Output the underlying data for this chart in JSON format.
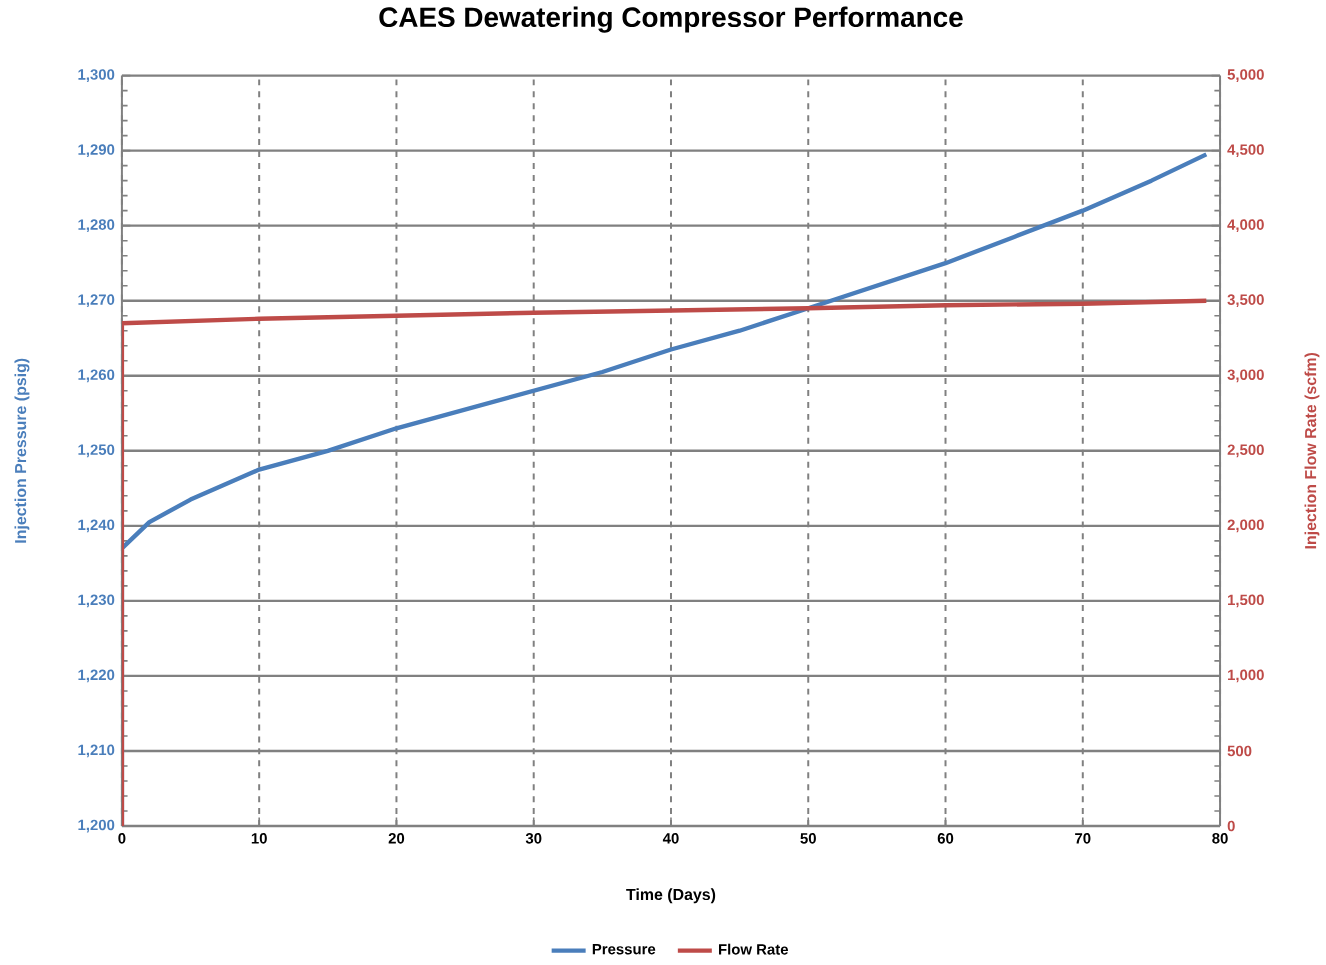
{
  "chart_data": {
    "type": "line",
    "title": "CAES Dewatering Compressor Performance",
    "xlabel": "Time (Days)",
    "ylabel": "Injection Pressure (psig)",
    "y2label": "Injection Flow Rate (scfm)",
    "xlim": [
      0,
      80
    ],
    "xticks": [
      0,
      10,
      20,
      30,
      40,
      50,
      60,
      70,
      80
    ],
    "ylim": [
      1200,
      1300
    ],
    "yticks": [
      {
        "value": 1200,
        "label": "1,200"
      },
      {
        "value": 1210,
        "label": "1,210"
      },
      {
        "value": 1220,
        "label": "1,220"
      },
      {
        "value": 1230,
        "label": "1,230"
      },
      {
        "value": 1240,
        "label": "1,240"
      },
      {
        "value": 1250,
        "label": "1,250"
      },
      {
        "value": 1260,
        "label": "1,260"
      },
      {
        "value": 1270,
        "label": "1,270"
      },
      {
        "value": 1280,
        "label": "1,280"
      },
      {
        "value": 1290,
        "label": "1,290"
      },
      {
        "value": 1300,
        "label": "1,300"
      }
    ],
    "y2lim": [
      0,
      5000
    ],
    "y2ticks": [
      0,
      500,
      {
        "value": 1000,
        "label": "1,000"
      },
      {
        "value": 1500,
        "label": "1,500"
      },
      {
        "value": 2000,
        "label": "2,000"
      },
      {
        "value": 2500,
        "label": "2,500"
      },
      {
        "value": 3000,
        "label": "3,000"
      },
      {
        "value": 3500,
        "label": "3,500"
      },
      {
        "value": 4000,
        "label": "4,000"
      },
      {
        "value": 4500,
        "label": "4,500"
      },
      {
        "value": 5000,
        "label": "5,000"
      }
    ],
    "grid": true,
    "legend": "bottom",
    "series": [
      {
        "name": "Flow Rate",
        "color": "#be4b48",
        "axis": "y2",
        "x": [
          0,
          0,
          10,
          20,
          30,
          40,
          50,
          60,
          70,
          79
        ],
        "values": [
          0,
          3350,
          3380,
          3400,
          3420,
          3435,
          3450,
          3470,
          3480,
          3500
        ]
      },
      {
        "name": "Pressure",
        "color": "#4a7ebb",
        "axis": "y",
        "x": [
          0,
          0,
          2,
          5,
          10,
          15,
          20,
          25,
          30,
          35,
          40,
          45,
          50,
          55,
          60,
          65,
          70,
          75,
          79
        ],
        "values": [
          1200,
          1237,
          1240.5,
          1243.5,
          1247.5,
          1250,
          1253,
          1255.5,
          1258,
          1260.5,
          1263.5,
          1266,
          1269,
          1272,
          1275,
          1278.5,
          1282,
          1286,
          1289.5
        ]
      }
    ]
  }
}
